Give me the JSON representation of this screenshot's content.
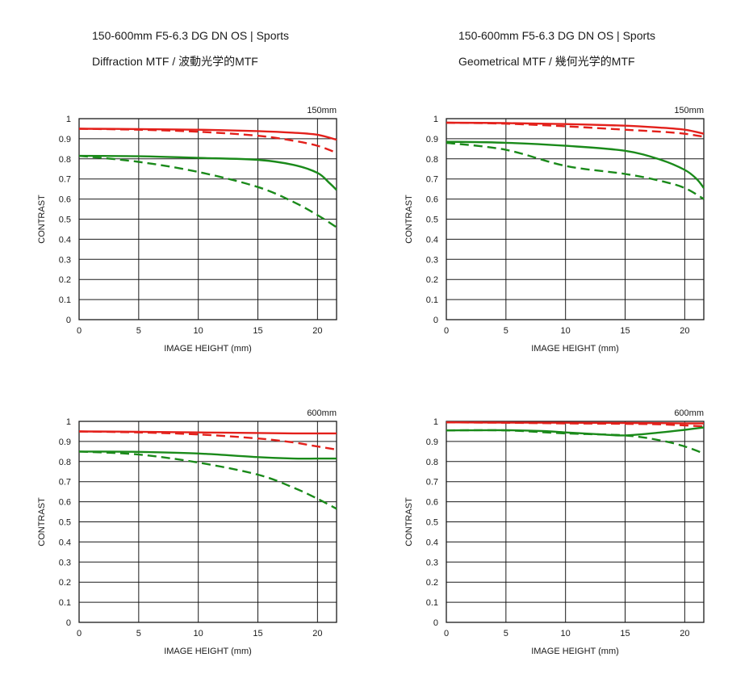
{
  "headers": {
    "left": {
      "lens": "150-600mm F5-6.3 DG DN OS | Sports",
      "mtf": "Diffraction MTF / 波動光学的MTF"
    },
    "right": {
      "lens": "150-600mm F5-6.3 DG DN OS | Sports",
      "mtf": "Geometrical MTF / 幾何光学的MTF"
    }
  },
  "colors": {
    "red": "#e3201b",
    "green": "#1a8a1a",
    "grid": "#1a1a1a"
  },
  "chart_data": [
    {
      "type": "line",
      "focal": "150mm",
      "xlabel": "IMAGE HEIGHT (mm)",
      "ylabel": "CONTRAST",
      "xlim": [
        0,
        21.6
      ],
      "ylim": [
        0,
        1
      ],
      "xticks": [
        0,
        5,
        10,
        15,
        20
      ],
      "yticks": [
        0,
        0.1,
        0.2,
        0.3,
        0.4,
        0.5,
        0.6,
        0.7,
        0.8,
        0.9,
        1
      ],
      "ytick_labels": [
        "0",
        "0.1",
        "0.2",
        "0.3",
        "0.4",
        "0.5",
        "0.6",
        "0.7",
        "0.8",
        "0.9",
        "1"
      ],
      "series": [
        {
          "color": "red",
          "dash": false,
          "points": [
            [
              0,
              0.95
            ],
            [
              5,
              0.948
            ],
            [
              10,
              0.945
            ],
            [
              15,
              0.938
            ],
            [
              18,
              0.93
            ],
            [
              20,
              0.92
            ],
            [
              21.6,
              0.895
            ]
          ]
        },
        {
          "color": "red",
          "dash": true,
          "points": [
            [
              0,
              0.95
            ],
            [
              5,
              0.945
            ],
            [
              10,
              0.935
            ],
            [
              15,
              0.915
            ],
            [
              18,
              0.89
            ],
            [
              20,
              0.865
            ],
            [
              21.6,
              0.83
            ]
          ]
        },
        {
          "color": "green",
          "dash": false,
          "points": [
            [
              0,
              0.815
            ],
            [
              5,
              0.813
            ],
            [
              10,
              0.805
            ],
            [
              15,
              0.795
            ],
            [
              18,
              0.77
            ],
            [
              20,
              0.73
            ],
            [
              21,
              0.68
            ],
            [
              21.6,
              0.645
            ]
          ]
        },
        {
          "color": "green",
          "dash": true,
          "points": [
            [
              0,
              0.815
            ],
            [
              5,
              0.785
            ],
            [
              10,
              0.735
            ],
            [
              15,
              0.66
            ],
            [
              18,
              0.585
            ],
            [
              20,
              0.52
            ],
            [
              21.6,
              0.46
            ]
          ]
        }
      ]
    },
    {
      "type": "line",
      "focal": "150mm",
      "xlabel": "IMAGE HEIGHT (mm)",
      "ylabel": "CONTRAST",
      "xlim": [
        0,
        21.6
      ],
      "ylim": [
        0,
        1
      ],
      "xticks": [
        0,
        5,
        10,
        15,
        20
      ],
      "yticks": [
        0,
        0.1,
        0.2,
        0.3,
        0.4,
        0.5,
        0.6,
        0.7,
        0.8,
        0.9,
        1
      ],
      "ytick_labels": [
        "0",
        "0.1",
        "0.2",
        "0.3",
        "0.4",
        "0.5",
        "0.6",
        "0.7",
        "0.8",
        "0.9",
        "1"
      ],
      "series": [
        {
          "color": "red",
          "dash": false,
          "points": [
            [
              0,
              0.98
            ],
            [
              5,
              0.978
            ],
            [
              10,
              0.973
            ],
            [
              15,
              0.965
            ],
            [
              18,
              0.955
            ],
            [
              20,
              0.945
            ],
            [
              21.6,
              0.925
            ]
          ]
        },
        {
          "color": "red",
          "dash": true,
          "points": [
            [
              0,
              0.98
            ],
            [
              5,
              0.975
            ],
            [
              10,
              0.962
            ],
            [
              15,
              0.945
            ],
            [
              18,
              0.935
            ],
            [
              20,
              0.925
            ],
            [
              21.6,
              0.91
            ]
          ]
        },
        {
          "color": "green",
          "dash": false,
          "points": [
            [
              0,
              0.885
            ],
            [
              5,
              0.88
            ],
            [
              10,
              0.865
            ],
            [
              15,
              0.84
            ],
            [
              18,
              0.795
            ],
            [
              20,
              0.745
            ],
            [
              21,
              0.7
            ],
            [
              21.6,
              0.655
            ]
          ]
        },
        {
          "color": "green",
          "dash": true,
          "points": [
            [
              0,
              0.88
            ],
            [
              5,
              0.845
            ],
            [
              10,
              0.765
            ],
            [
              15,
              0.725
            ],
            [
              18,
              0.69
            ],
            [
              20,
              0.655
            ],
            [
              21.6,
              0.6
            ]
          ]
        }
      ]
    },
    {
      "type": "line",
      "focal": "600mm",
      "xlabel": "IMAGE HEIGHT (mm)",
      "ylabel": "CONTRAST",
      "xlim": [
        0,
        21.6
      ],
      "ylim": [
        0,
        1
      ],
      "xticks": [
        0,
        5,
        10,
        15,
        20
      ],
      "yticks": [
        0,
        0.1,
        0.2,
        0.3,
        0.4,
        0.5,
        0.6,
        0.7,
        0.8,
        0.9,
        1
      ],
      "ytick_labels": [
        "0",
        "0.1",
        "0.2",
        "0.3",
        "0.4",
        "0.5",
        "0.6",
        "0.7",
        "0.8",
        "0.9",
        "1"
      ],
      "series": [
        {
          "color": "red",
          "dash": false,
          "points": [
            [
              0,
              0.95
            ],
            [
              5,
              0.948
            ],
            [
              10,
              0.945
            ],
            [
              15,
              0.942
            ],
            [
              18,
              0.94
            ],
            [
              20,
              0.94
            ],
            [
              21.6,
              0.94
            ]
          ]
        },
        {
          "color": "red",
          "dash": true,
          "points": [
            [
              0,
              0.95
            ],
            [
              5,
              0.945
            ],
            [
              10,
              0.935
            ],
            [
              15,
              0.915
            ],
            [
              18,
              0.895
            ],
            [
              20,
              0.875
            ],
            [
              21.6,
              0.86
            ]
          ]
        },
        {
          "color": "green",
          "dash": false,
          "points": [
            [
              0,
              0.85
            ],
            [
              5,
              0.848
            ],
            [
              10,
              0.84
            ],
            [
              15,
              0.822
            ],
            [
              18,
              0.815
            ],
            [
              20,
              0.815
            ],
            [
              21.6,
              0.815
            ]
          ]
        },
        {
          "color": "green",
          "dash": true,
          "points": [
            [
              0,
              0.85
            ],
            [
              5,
              0.835
            ],
            [
              10,
              0.795
            ],
            [
              15,
              0.735
            ],
            [
              18,
              0.67
            ],
            [
              20,
              0.615
            ],
            [
              21.6,
              0.565
            ]
          ]
        }
      ]
    },
    {
      "type": "line",
      "focal": "600mm",
      "xlabel": "IMAGE HEIGHT (mm)",
      "ylabel": "CONTRAST",
      "xlim": [
        0,
        21.6
      ],
      "ylim": [
        0,
        1
      ],
      "xticks": [
        0,
        5,
        10,
        15,
        20
      ],
      "yticks": [
        0,
        0.1,
        0.2,
        0.3,
        0.4,
        0.5,
        0.6,
        0.7,
        0.8,
        0.9,
        1
      ],
      "ytick_labels": [
        "0",
        "0.1",
        "0.2",
        "0.3",
        "0.4",
        "0.5",
        "0.6",
        "0.7",
        "0.8",
        "0.9",
        "1"
      ],
      "series": [
        {
          "color": "red",
          "dash": false,
          "points": [
            [
              0,
              0.995
            ],
            [
              5,
              0.994
            ],
            [
              10,
              0.993
            ],
            [
              15,
              0.992
            ],
            [
              18,
              0.991
            ],
            [
              20,
              0.99
            ],
            [
              21.6,
              0.99
            ]
          ]
        },
        {
          "color": "red",
          "dash": true,
          "points": [
            [
              0,
              0.995
            ],
            [
              5,
              0.993
            ],
            [
              10,
              0.99
            ],
            [
              15,
              0.988
            ],
            [
              18,
              0.985
            ],
            [
              20,
              0.98
            ],
            [
              21.6,
              0.975
            ]
          ]
        },
        {
          "color": "green",
          "dash": false,
          "points": [
            [
              0,
              0.955
            ],
            [
              5,
              0.956
            ],
            [
              8,
              0.952
            ],
            [
              10,
              0.945
            ],
            [
              13,
              0.935
            ],
            [
              15,
              0.93
            ],
            [
              18,
              0.945
            ],
            [
              20,
              0.958
            ],
            [
              21.6,
              0.97
            ]
          ]
        },
        {
          "color": "green",
          "dash": true,
          "points": [
            [
              0,
              0.955
            ],
            [
              5,
              0.955
            ],
            [
              10,
              0.94
            ],
            [
              15,
              0.93
            ],
            [
              18,
              0.905
            ],
            [
              20,
              0.875
            ],
            [
              21.6,
              0.84
            ]
          ]
        }
      ]
    }
  ]
}
